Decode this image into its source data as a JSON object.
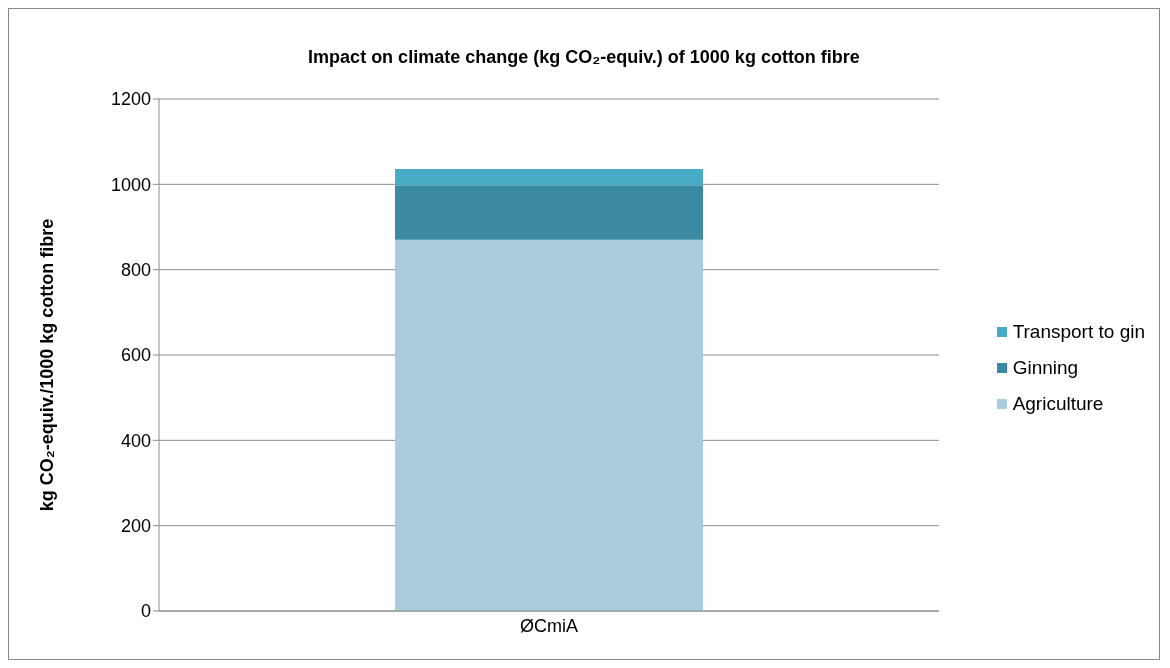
{
  "chart_data": {
    "type": "bar",
    "title": "Impact on climate change (kg CO₂-equiv.) of 1000 kg cotton fibre",
    "ylabel": "kg CO₂-equiv./1000 kg cotton fibre",
    "categories": [
      "ØCmiA"
    ],
    "stacked": true,
    "series": [
      {
        "name": "Agriculture",
        "color": "#a9cddc",
        "values": [
          870
        ]
      },
      {
        "name": "Ginning",
        "color": "#3b8aa1",
        "values": [
          128
        ]
      },
      {
        "name": "Transport to gin",
        "color": "#4aabc6",
        "values": [
          38
        ]
      }
    ],
    "ylim": [
      0,
      1200
    ],
    "yticks": [
      0,
      200,
      400,
      600,
      800,
      1000,
      1200
    ],
    "grid": "y",
    "legend": "right"
  }
}
